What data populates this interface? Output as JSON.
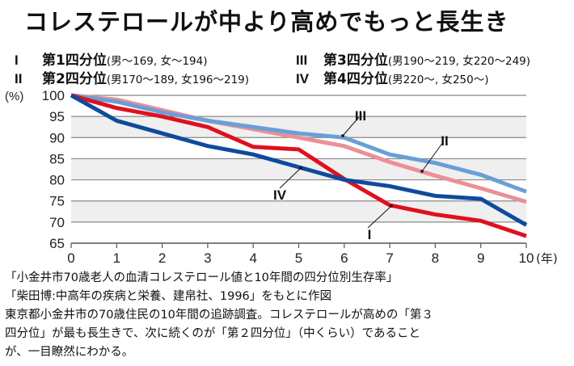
{
  "title": "コレステロールが中より高めでもっと長生き",
  "legend": [
    {
      "num": "I",
      "name": "第1四分位",
      "range": "(男〜169, 女〜194)"
    },
    {
      "num": "II",
      "name": "第2四分位",
      "range": "(男170〜189, 女196〜219)"
    },
    {
      "num": "III",
      "name": "第3四分位",
      "range": "(男190〜219, 女220〜249)"
    },
    {
      "num": "IV",
      "name": "第4四分位",
      "range": "(男220〜, 女250〜)"
    }
  ],
  "footer": [
    "「小金井市70歳老人の血清コレステロール値と10年間の四分位別生存率」",
    "「柴田博:中高年の疾病と栄養、建帛社、1996」をもとに作図",
    "東京都小金井市の70歳住民の10年間の追跡調査。コレステロールが高めの「第３",
    "四分位」が最も長生きで、次に続くのが「第２四分位」（中くらい）であること",
    "が、一目瞭然にわかる。"
  ],
  "chart_data": {
    "type": "line",
    "title": "",
    "xlabel": "(年)",
    "ylabel": "(%)",
    "x": [
      0,
      1,
      2,
      3,
      4,
      5,
      6,
      7,
      8,
      9,
      10
    ],
    "xticks": [
      "0",
      "1",
      "2",
      "3",
      "4",
      "5",
      "6",
      "7",
      "8",
      "9",
      "10"
    ],
    "yticks": [
      "65",
      "70",
      "75",
      "80",
      "85",
      "90",
      "95",
      "100"
    ],
    "xlim": [
      0,
      10
    ],
    "ylim": [
      65,
      100
    ],
    "grid": true,
    "series": [
      {
        "name": "I",
        "color": "#e0101e",
        "values": [
          100,
          97,
          95,
          92.5,
          87.8,
          87.2,
          80.2,
          74,
          71.8,
          70.3,
          66.7
        ]
      },
      {
        "name": "II",
        "color": "#ec8f96",
        "values": [
          100,
          99,
          96.5,
          94,
          92,
          90,
          88,
          84.2,
          81,
          78,
          74.8
        ]
      },
      {
        "name": "III",
        "color": "#6a9fd6",
        "values": [
          100,
          98.5,
          96,
          94,
          92.5,
          91,
          90,
          86,
          84,
          81.2,
          77.2
        ]
      },
      {
        "name": "IV",
        "color": "#0f4a9c",
        "values": [
          100,
          94,
          91,
          88,
          86,
          83,
          80,
          78.5,
          76.2,
          75.5,
          69.3
        ]
      }
    ]
  }
}
